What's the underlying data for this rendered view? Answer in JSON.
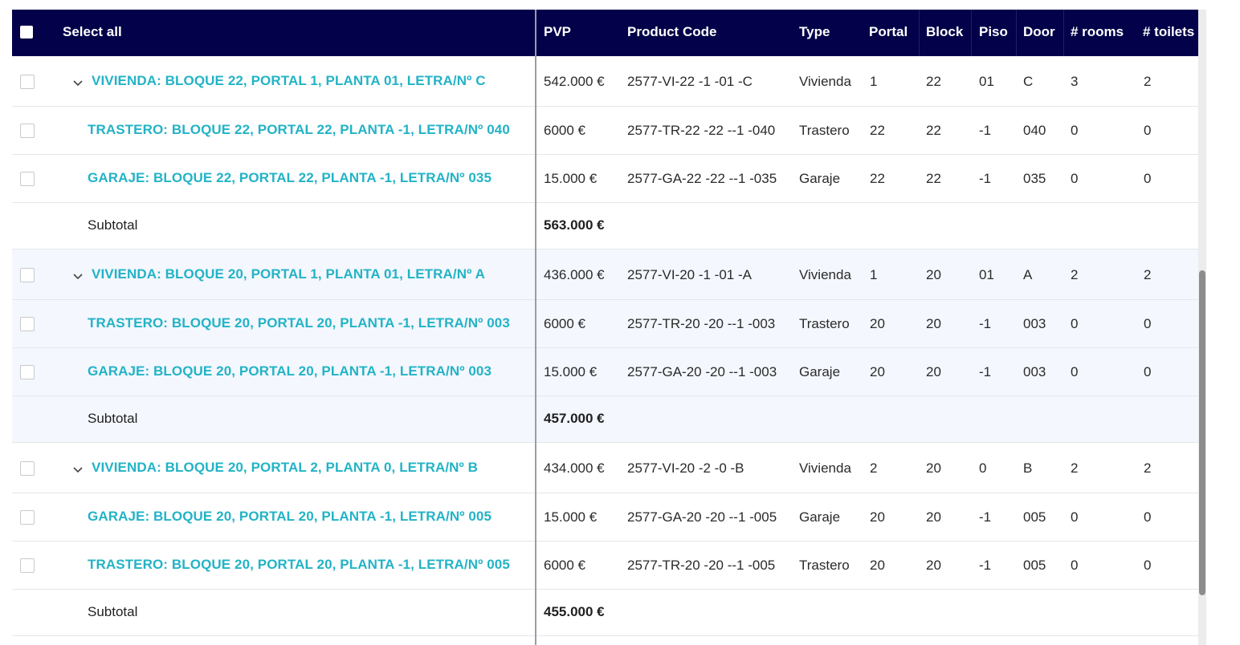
{
  "header": {
    "select_all": "Select all",
    "columns": {
      "pvp": "PVP",
      "product_code": "Product Code",
      "type": "Type",
      "portal": "Portal",
      "block": "Block",
      "piso": "Piso",
      "door": "Door",
      "rooms": "# rooms",
      "toilets": "# toilets"
    }
  },
  "groups": [
    {
      "main": {
        "name": "VIVIENDA: BLOQUE 22, PORTAL 1, PLANTA 01, LETRA/Nº C",
        "pvp": "542.000 €",
        "code": "2577-VI-22 -1 -01 -C",
        "type": "Vivienda",
        "portal": "1",
        "block": "22",
        "piso": "01",
        "door": "C",
        "rooms": "3",
        "toilets": "2"
      },
      "children": [
        {
          "name": "TRASTERO: BLOQUE 22, PORTAL 22, PLANTA -1, LETRA/Nº 040",
          "pvp": "6000 €",
          "code": "2577-TR-22 -22 --1 -040",
          "type": "Trastero",
          "portal": "22",
          "block": "22",
          "piso": "-1",
          "door": "040",
          "rooms": "0",
          "toilets": "0"
        },
        {
          "name": "GARAJE: BLOQUE 22, PORTAL 22, PLANTA -1, LETRA/Nº 035",
          "pvp": "15.000 €",
          "code": "2577-GA-22 -22 --1 -035",
          "type": "Garaje",
          "portal": "22",
          "block": "22",
          "piso": "-1",
          "door": "035",
          "rooms": "0",
          "toilets": "0"
        }
      ],
      "subtotal_label": "Subtotal",
      "subtotal": "563.000 €"
    },
    {
      "main": {
        "name": "VIVIENDA: BLOQUE 20, PORTAL 1, PLANTA 01, LETRA/Nº A",
        "pvp": "436.000 €",
        "code": "2577-VI-20 -1 -01 -A",
        "type": "Vivienda",
        "portal": "1",
        "block": "20",
        "piso": "01",
        "door": "A",
        "rooms": "2",
        "toilets": "2"
      },
      "children": [
        {
          "name": "TRASTERO: BLOQUE 20, PORTAL 20, PLANTA -1, LETRA/Nº 003",
          "pvp": "6000 €",
          "code": "2577-TR-20 -20 --1 -003",
          "type": "Trastero",
          "portal": "20",
          "block": "20",
          "piso": "-1",
          "door": "003",
          "rooms": "0",
          "toilets": "0"
        },
        {
          "name": "GARAJE: BLOQUE 20, PORTAL 20, PLANTA -1, LETRA/Nº 003",
          "pvp": "15.000 €",
          "code": "2577-GA-20 -20 --1 -003",
          "type": "Garaje",
          "portal": "20",
          "block": "20",
          "piso": "-1",
          "door": "003",
          "rooms": "0",
          "toilets": "0"
        }
      ],
      "subtotal_label": "Subtotal",
      "subtotal": "457.000 €"
    },
    {
      "main": {
        "name": "VIVIENDA: BLOQUE 20, PORTAL 2, PLANTA 0, LETRA/Nº B",
        "pvp": "434.000 €",
        "code": "2577-VI-20 -2 -0 -B",
        "type": "Vivienda",
        "portal": "2",
        "block": "20",
        "piso": "0",
        "door": "B",
        "rooms": "2",
        "toilets": "2"
      },
      "children": [
        {
          "name": "GARAJE: BLOQUE 20, PORTAL 20, PLANTA -1, LETRA/Nº 005",
          "pvp": "15.000 €",
          "code": "2577-GA-20 -20 --1 -005",
          "type": "Garaje",
          "portal": "20",
          "block": "20",
          "piso": "-1",
          "door": "005",
          "rooms": "0",
          "toilets": "0"
        },
        {
          "name": "TRASTERO: BLOQUE 20, PORTAL 20, PLANTA -1, LETRA/Nº 005",
          "pvp": "6000 €",
          "code": "2577-TR-20 -20 --1 -005",
          "type": "Trastero",
          "portal": "20",
          "block": "20",
          "piso": "-1",
          "door": "005",
          "rooms": "0",
          "toilets": "0"
        }
      ],
      "subtotal_label": "Subtotal",
      "subtotal": "455.000 €"
    }
  ],
  "colors": {
    "header_bg": "#020149",
    "link": "#22b3c6",
    "alt_row": "#f4f7fd"
  },
  "icons": {
    "expand": "chevron-down-icon",
    "checkbox": "checkbox-icon"
  }
}
